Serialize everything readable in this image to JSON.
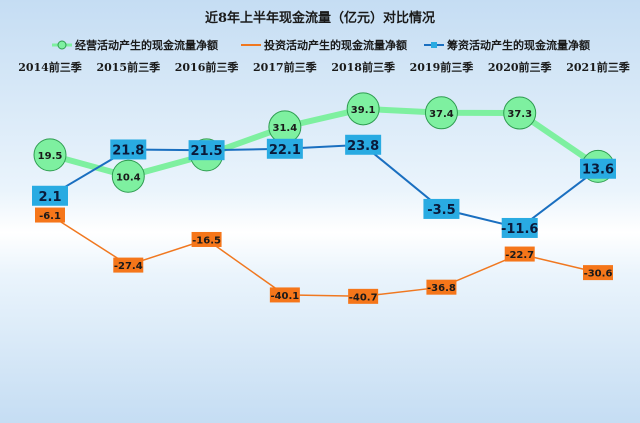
{
  "chart_data": {
    "type": "line",
    "title": "近8年上半年现金流量（亿元）对比情况",
    "categories": [
      "2014前三季",
      "2015前三季",
      "2016前三季",
      "2017前三季",
      "2018前三季",
      "2019前三季",
      "2020前三季",
      "2021前三季"
    ],
    "series": [
      {
        "name": "经营活动产生的现金流量净额",
        "values": [
          19.5,
          10.4,
          19.5,
          31.4,
          39.1,
          37.4,
          37.3,
          14.6
        ],
        "color": "#7ef0a0"
      },
      {
        "name": "投资活动产生的现金流量净额",
        "values": [
          -6.1,
          -27.4,
          -16.5,
          -40.1,
          -40.7,
          -36.8,
          -22.7,
          -30.6
        ],
        "color": "#f07820"
      },
      {
        "name": "筹资活动产生的现金流量净额",
        "values": [
          2.1,
          21.8,
          21.5,
          22.1,
          23.8,
          -3.5,
          -11.6,
          13.6
        ],
        "color": "#1a6fc0"
      }
    ],
    "legend_position": "top",
    "category_axis_position": "top",
    "ylim": [
      -45,
      45
    ],
    "grid": false
  }
}
